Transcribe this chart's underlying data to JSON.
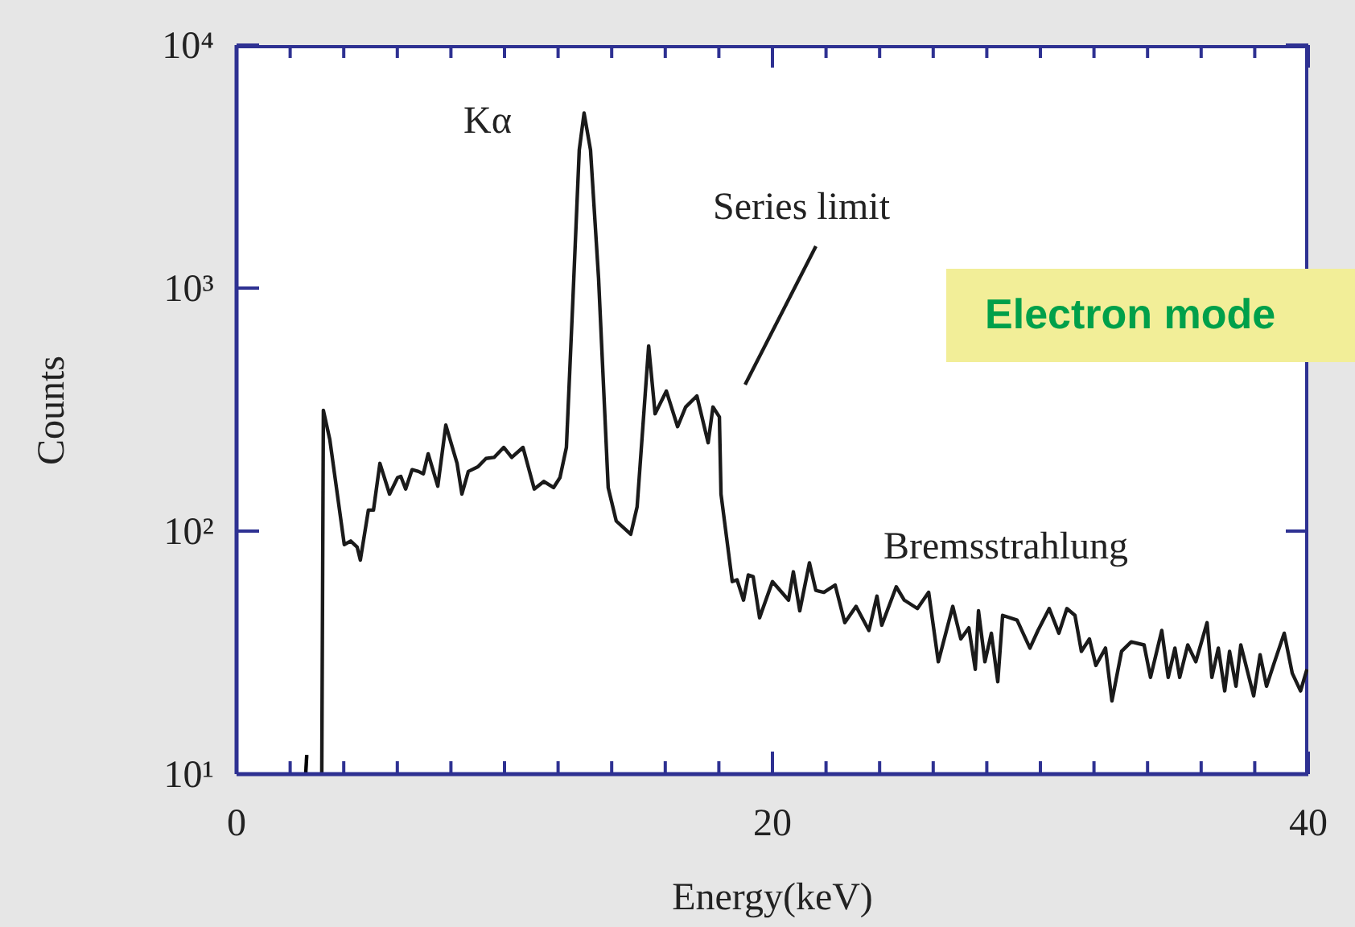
{
  "chart_data": {
    "type": "line",
    "xlabel": "Energy(keV)",
    "ylabel": "Counts",
    "log": "y",
    "marker": "none",
    "line_style": "solid",
    "xlim": [
      0,
      40
    ],
    "ylim": [
      10,
      10000
    ],
    "xticks": [
      0,
      {
        "value": 2,
        "label": null
      },
      {
        "value": 4,
        "label": null
      },
      {
        "value": 6,
        "label": null
      },
      {
        "value": 8,
        "label": null
      },
      {
        "value": 10,
        "label": null
      },
      {
        "value": 12,
        "label": null
      },
      {
        "value": 14,
        "label": null
      },
      {
        "value": 16,
        "label": null
      },
      {
        "value": 18,
        "label": null
      },
      20,
      {
        "value": 22,
        "label": null
      },
      {
        "value": 24,
        "label": null
      },
      {
        "value": 26,
        "label": null
      },
      {
        "value": 28,
        "label": null
      },
      {
        "value": 30,
        "label": null
      },
      {
        "value": 32,
        "label": null
      },
      {
        "value": 34,
        "label": null
      },
      {
        "value": 36,
        "label": null
      },
      {
        "value": 38,
        "label": null
      },
      40
    ],
    "yticks": [
      {
        "value": 10,
        "label": "10¹"
      },
      {
        "value": 100,
        "label": "10²"
      },
      {
        "value": 1000,
        "label": "10³"
      },
      {
        "value": 10000,
        "label": "10⁴"
      }
    ],
    "annotations": [
      {
        "text": "Kα",
        "x": 12.97,
        "y": 5250
      },
      "Series limit",
      "Bremsstrahlung",
      "Electron mode"
    ],
    "series": [
      {
        "color": "#000000",
        "x": [
          2.58,
          2.62
        ],
        "values": [
          10,
          12
        ]
      },
      {
        "color": "#1a1a1a",
        "x": [
          3.18,
          3.24,
          3.48,
          4.02,
          4.26,
          4.5,
          4.62,
          4.92,
          5.11,
          5.35,
          5.71,
          6.01,
          6.13,
          6.31,
          6.55,
          6.79,
          6.97,
          7.15,
          7.51,
          7.81,
          8.23,
          8.41,
          8.65,
          9.01,
          9.31,
          9.61,
          9.97,
          10.27,
          10.69,
          11.11,
          11.47,
          11.83,
          12.07,
          12.31,
          12.55,
          12.79,
          12.97,
          13.21,
          13.51,
          13.87,
          14.17,
          14.71,
          14.95,
          15.38,
          15.62,
          16.04,
          16.46,
          16.76,
          17.18,
          17.6,
          17.78,
          18.02,
          18.08,
          18.5,
          18.68,
          18.92,
          19.1,
          19.28,
          19.52,
          20.0,
          20.6,
          20.78,
          21.02,
          21.38,
          21.62,
          21.92,
          22.34,
          22.7,
          23.12,
          23.6,
          23.9,
          24.08,
          24.62,
          24.92,
          25.41,
          25.83,
          26.19,
          26.73,
          27.03,
          27.33,
          27.57,
          27.69,
          27.93,
          28.17,
          28.41,
          28.59,
          29.13,
          29.61,
          29.91,
          30.33,
          30.69,
          30.99,
          31.29,
          31.53,
          31.83,
          32.07,
          32.43,
          32.67,
          33.03,
          33.39,
          33.87,
          34.11,
          34.53,
          34.77,
          35.02,
          35.2,
          35.5,
          35.8,
          36.22,
          36.4,
          36.64,
          36.88,
          37.06,
          37.3,
          37.48,
          37.96,
          38.2,
          38.44,
          38.74,
          39.1,
          39.4,
          39.71,
          39.95
        ],
        "values": [
          10,
          314,
          238,
          88,
          91,
          86,
          76,
          122,
          122,
          190,
          142,
          166,
          168,
          149,
          179,
          176,
          172,
          208,
          153,
          273,
          190,
          142,
          176,
          184,
          199,
          201,
          221,
          201,
          221,
          149,
          160,
          151,
          166,
          221,
          885,
          3700,
          5250,
          3700,
          1100,
          151,
          110,
          97,
          126,
          578,
          304,
          377,
          269,
          324,
          360,
          231,
          324,
          295,
          142,
          62,
          63,
          52,
          66,
          65,
          44,
          62,
          52,
          68,
          47,
          74,
          57,
          56,
          60,
          42,
          49,
          39,
          54,
          41,
          59,
          52,
          48,
          56,
          29,
          49,
          36,
          40,
          27,
          47,
          29,
          38,
          24,
          45,
          43,
          33,
          39,
          48,
          38,
          48,
          45,
          32,
          36,
          28,
          33,
          20,
          32,
          35,
          34,
          25,
          39,
          25,
          33,
          25,
          34,
          29,
          42,
          25,
          33,
          22,
          32,
          23,
          34,
          21,
          31,
          23,
          29,
          38,
          26,
          22,
          27
        ]
      }
    ]
  }
}
